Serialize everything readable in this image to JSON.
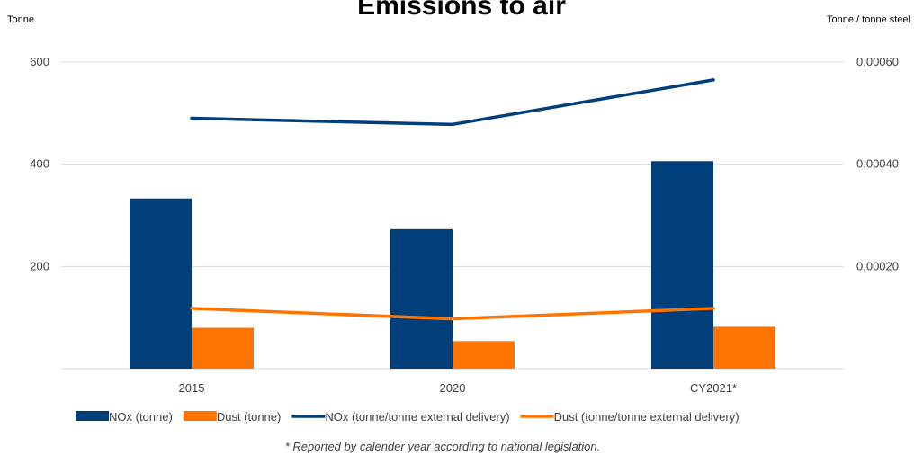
{
  "chart_data": {
    "type": "bar",
    "title": "Emissions to air",
    "ylabel_left": "Tonne",
    "ylabel_right": "Tonne / tonne steel",
    "categories": [
      "2015",
      "2020",
      "CY2021*"
    ],
    "ylim_left": [
      0,
      600
    ],
    "ylim_right": [
      0,
      0.0006
    ],
    "yticks_left": [
      "200",
      "400",
      "600"
    ],
    "yticks_right": [
      "0,00020",
      "0,00040",
      "0,00060"
    ],
    "grid": true,
    "legend_position": "bottom",
    "series": [
      {
        "name": "NOx (tonne)",
        "kind": "bar",
        "axis": "left",
        "color": "#003f7a",
        "values": [
          333,
          273,
          406
        ]
      },
      {
        "name": "Dust (tonne)",
        "kind": "bar",
        "axis": "left",
        "color": "#ff7300",
        "values": [
          80,
          54,
          82
        ]
      },
      {
        "name": "NOx (tonne/tonne external delivery)",
        "kind": "line",
        "axis": "right",
        "color": "#003f7a",
        "values": [
          0.00049,
          0.000478,
          0.000565
        ]
      },
      {
        "name": "Dust (tonne/tonne external delivery)",
        "kind": "line",
        "axis": "right",
        "color": "#ff7300",
        "values": [
          0.000118,
          9.75e-05,
          0.000118
        ]
      }
    ],
    "footnote": "* Reported by calender year according to national legislation."
  }
}
